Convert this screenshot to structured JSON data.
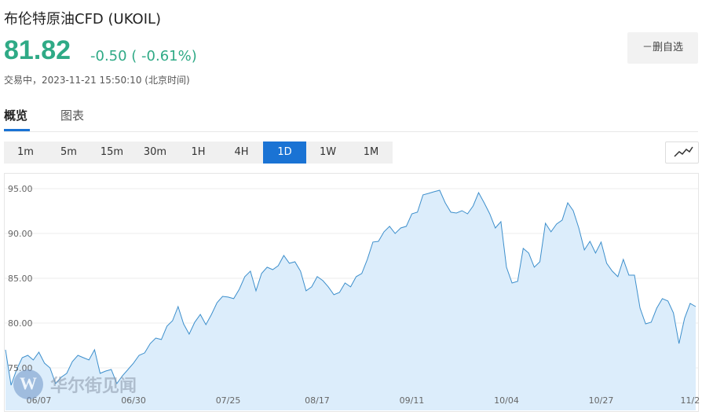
{
  "header": {
    "title": "布伦特原油CFD  (UKOIL)",
    "price": "81.82",
    "change": "-0.50 ( -0.61%)",
    "status": "交易中，2023-11-21 15:50:10 (北京时间)",
    "button": "－删自选"
  },
  "tabs": [
    "概览",
    "图表"
  ],
  "periods": [
    "1m",
    "5m",
    "15m",
    "30m",
    "1H",
    "4H",
    "1D",
    "1W",
    "1M"
  ],
  "watermark": "华尔街见闻",
  "chart_data": {
    "type": "area",
    "color": "#3d8fcc",
    "fill": "#dcedfb",
    "grid": true,
    "ylim": [
      70.26,
      96.75
    ],
    "yticks": [
      {
        "value": 75,
        "label": "75.00"
      },
      {
        "value": 80,
        "label": "80.00"
      },
      {
        "value": 85,
        "label": "85.00"
      },
      {
        "value": 90,
        "label": "90.00"
      },
      {
        "value": 95,
        "label": "95.00"
      }
    ],
    "categories": [
      null,
      null,
      null,
      null,
      null,
      null,
      "06/07",
      null,
      null,
      null,
      null,
      null,
      null,
      null,
      null,
      null,
      null,
      null,
      null,
      null,
      null,
      null,
      null,
      "06/30",
      null,
      null,
      null,
      null,
      null,
      null,
      null,
      null,
      null,
      null,
      null,
      null,
      null,
      null,
      null,
      null,
      "07/25",
      null,
      null,
      null,
      null,
      null,
      null,
      null,
      null,
      null,
      null,
      null,
      null,
      null,
      null,
      null,
      "08/17",
      null,
      null,
      null,
      null,
      null,
      null,
      null,
      null,
      null,
      null,
      null,
      null,
      null,
      null,
      null,
      null,
      "09/11",
      null,
      null,
      null,
      null,
      null,
      null,
      null,
      null,
      null,
      null,
      null,
      null,
      null,
      null,
      null,
      null,
      "10/04",
      null,
      null,
      null,
      null,
      null,
      null,
      null,
      null,
      null,
      null,
      null,
      null,
      null,
      null,
      null,
      null,
      "10/27",
      null,
      null,
      null,
      null,
      null,
      null,
      null,
      null,
      null,
      null,
      null,
      null,
      null,
      null,
      null,
      "11/2",
      null
    ],
    "values": [
      77.02,
      73.07,
      74.82,
      76.14,
      76.4,
      75.88,
      76.75,
      75.53,
      75.0,
      73.25,
      73.95,
      74.39,
      75.7,
      76.4,
      76.14,
      75.88,
      77.02,
      74.39,
      74.65,
      74.82,
      73.25,
      74.12,
      74.82,
      75.53,
      76.4,
      76.67,
      77.72,
      78.33,
      78.16,
      79.65,
      80.26,
      81.84,
      79.91,
      78.77,
      80.09,
      80.96,
      79.82,
      80.96,
      82.28,
      82.98,
      82.9,
      82.72,
      83.77,
      85.18,
      85.79,
      83.6,
      85.53,
      86.23,
      85.96,
      86.4,
      87.54,
      86.67,
      86.84,
      85.79,
      83.6,
      84.04,
      85.18,
      84.74,
      84.04,
      83.16,
      83.42,
      84.47,
      84.04,
      85.18,
      85.53,
      87.11,
      89.04,
      89.12,
      90.18,
      90.79,
      90.0,
      90.61,
      90.79,
      92.19,
      92.37,
      94.3,
      94.47,
      94.65,
      94.82,
      93.42,
      92.37,
      92.28,
      92.54,
      92.19,
      93.07,
      94.56,
      93.42,
      92.19,
      90.61,
      91.32,
      86.23,
      84.47,
      84.65,
      88.33,
      87.81,
      86.23,
      86.84,
      91.14,
      90.18,
      91.05,
      91.49,
      93.42,
      92.54,
      90.61,
      88.16,
      89.12,
      87.81,
      89.04,
      86.67,
      85.79,
      85.18,
      87.11,
      85.35,
      85.35,
      81.67,
      79.91,
      80.09,
      81.67,
      82.72,
      82.46,
      81.14,
      77.72,
      80.53,
      82.19,
      81.84
    ]
  }
}
